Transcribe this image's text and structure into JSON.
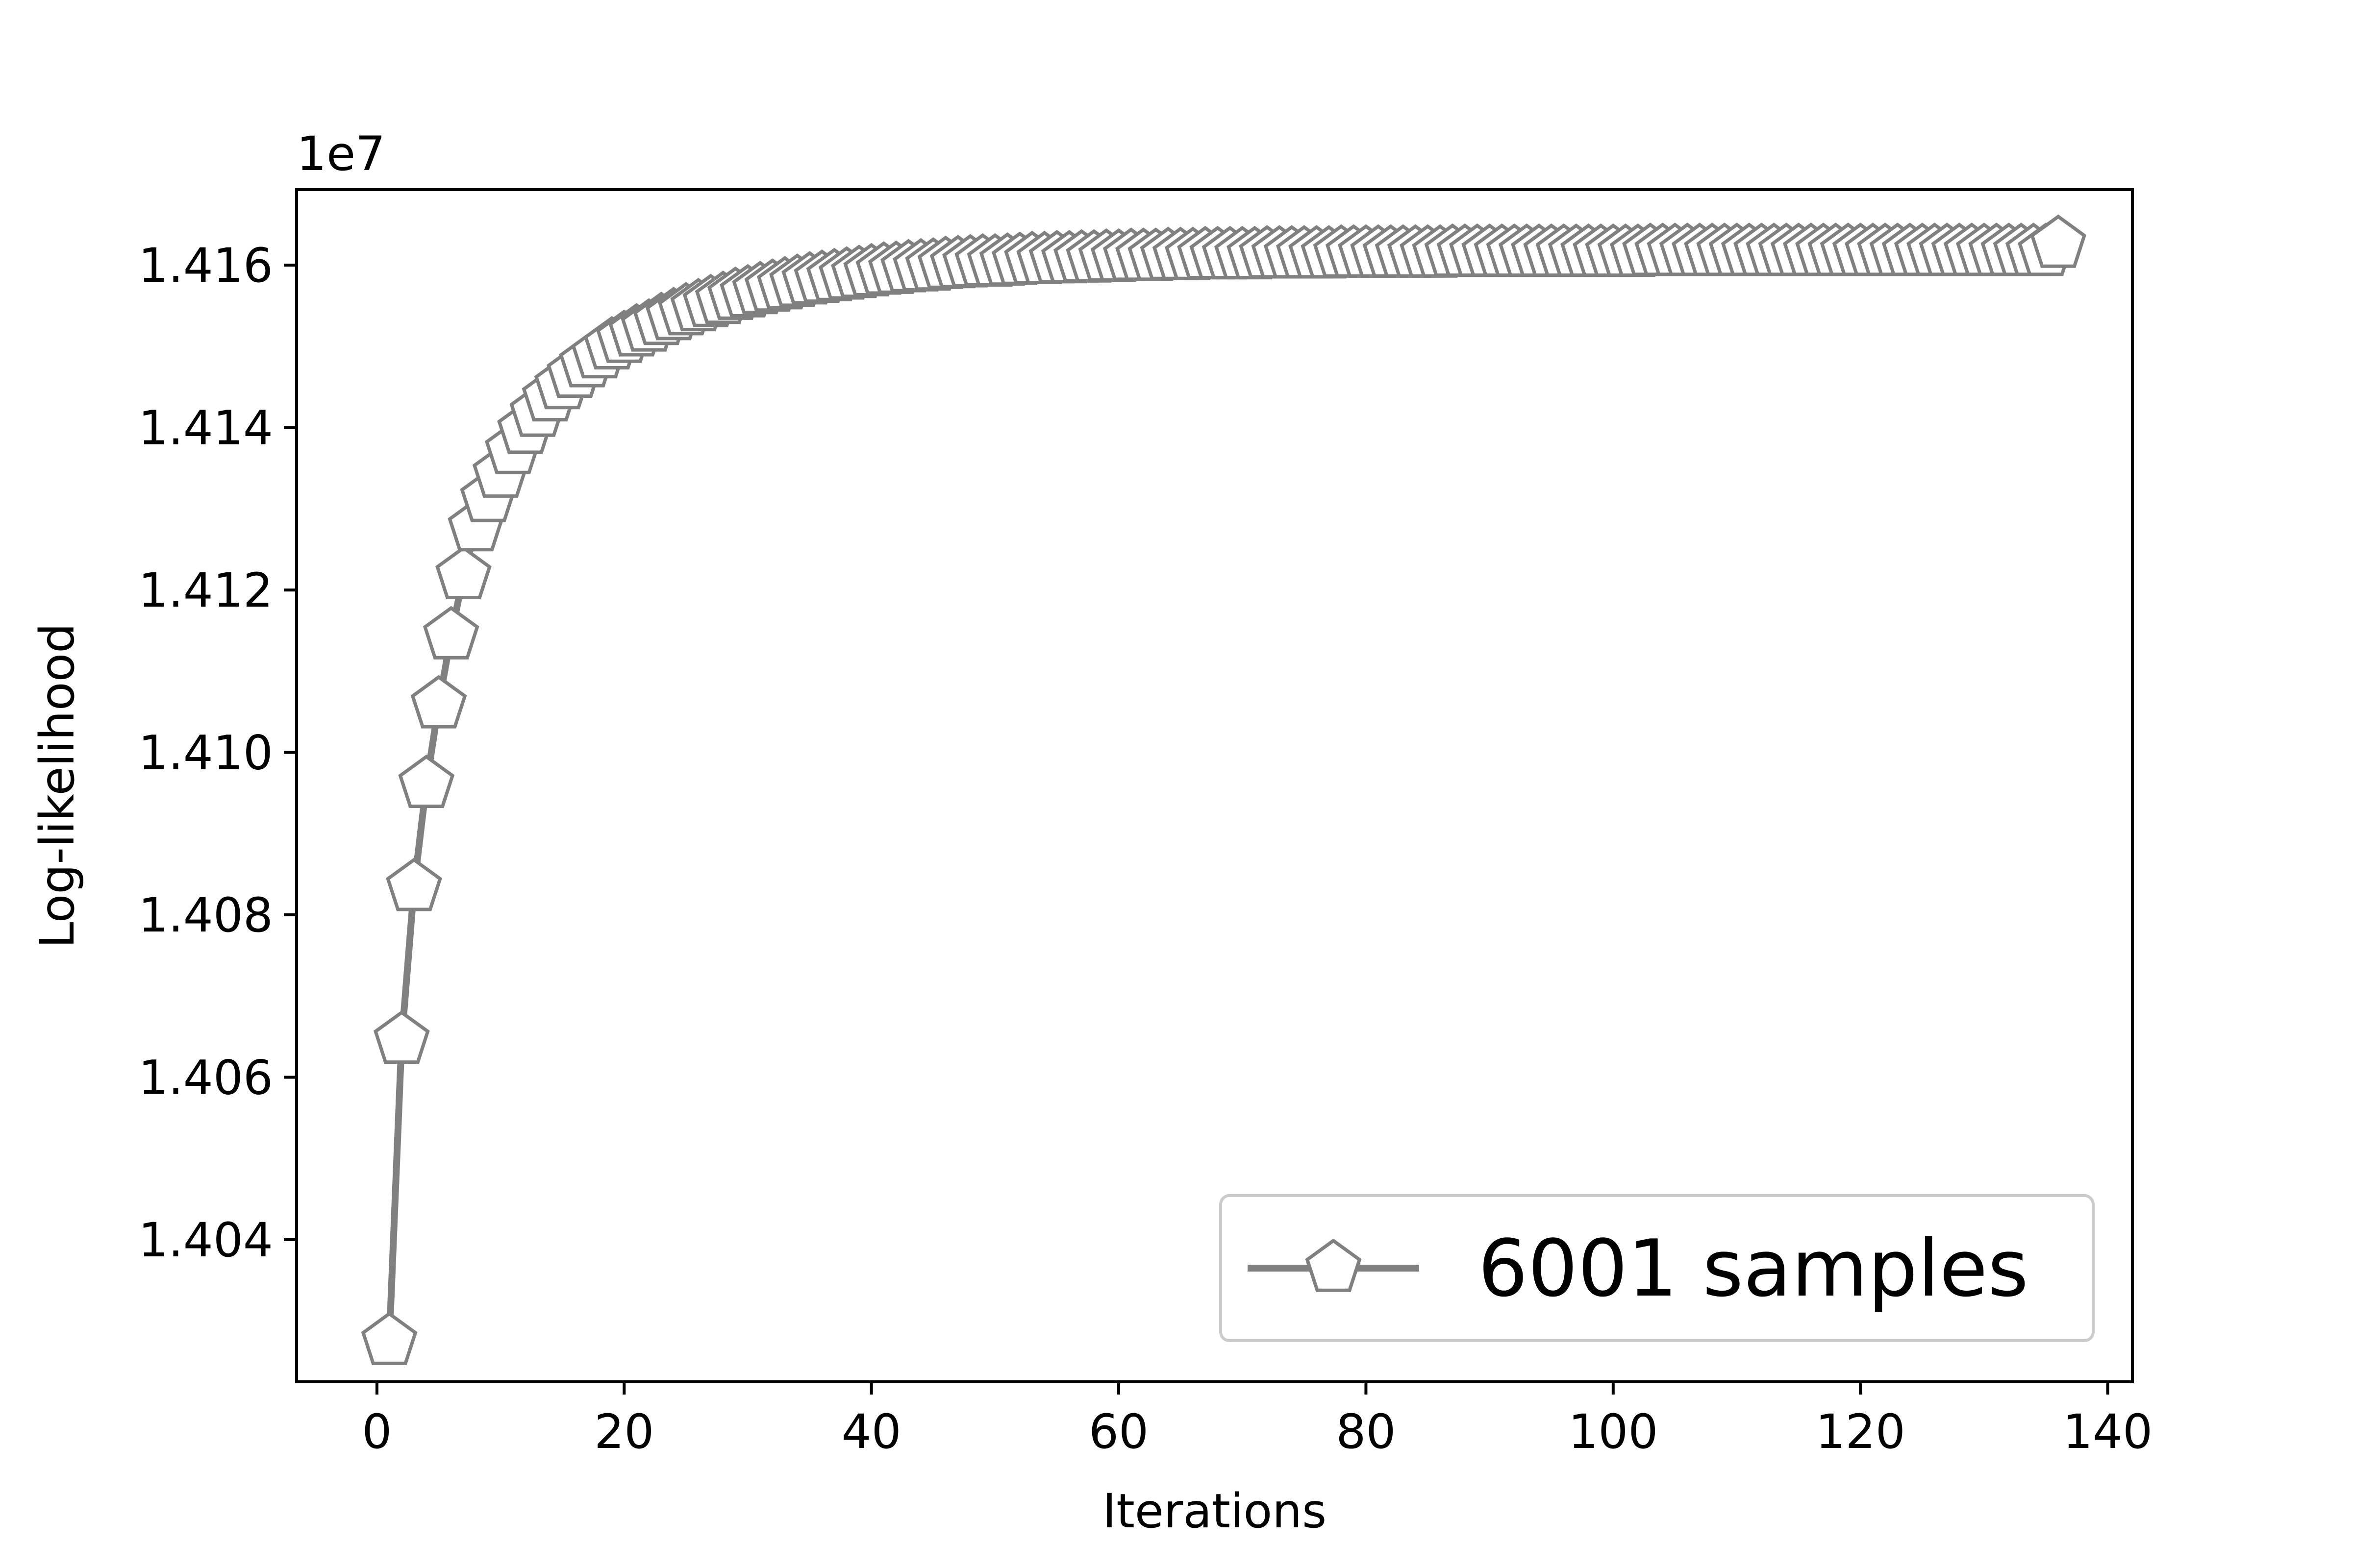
{
  "chart_data": {
    "type": "line",
    "title": "",
    "xlabel": "Iterations",
    "ylabel": "Log-likelihood",
    "y_offset_label": "1e7",
    "xlim": [
      -6.5,
      142
    ],
    "ylim": [
      1.40225,
      1.41693
    ],
    "x_ticks": [
      0,
      20,
      40,
      60,
      80,
      100,
      120,
      140
    ],
    "x_tick_labels": [
      "0",
      "20",
      "40",
      "60",
      "80",
      "100",
      "120",
      "140"
    ],
    "y_ticks": [
      1.404,
      1.406,
      1.408,
      1.41,
      1.412,
      1.414,
      1.416
    ],
    "y_tick_labels": [
      "1.404",
      "1.406",
      "1.408",
      "1.410",
      "1.412",
      "1.414",
      "1.416"
    ],
    "grid": false,
    "legend_position": "lower right",
    "marker": "pentagon",
    "series_color": "#808080",
    "series": [
      {
        "name": "6001 samples",
        "description": "Iterations 1 through 136; y values in units of 1e7",
        "x": [
          1,
          2,
          3,
          4,
          5,
          6,
          7,
          8,
          9,
          10,
          11,
          12,
          13,
          14,
          15,
          16,
          17,
          18,
          19,
          20,
          21,
          22,
          23,
          24,
          25,
          26,
          27,
          28,
          29,
          30,
          31,
          32,
          33,
          34,
          35,
          36,
          37,
          38,
          39,
          40,
          41,
          42,
          43,
          44,
          45,
          46,
          47,
          48,
          49,
          50,
          51,
          52,
          53,
          54,
          55,
          56,
          57,
          58,
          59,
          60,
          61,
          62,
          63,
          64,
          65,
          66,
          67,
          68,
          69,
          70,
          71,
          72,
          73,
          74,
          75,
          76,
          77,
          78,
          79,
          80,
          81,
          82,
          83,
          84,
          85,
          86,
          87,
          88,
          89,
          90,
          91,
          92,
          93,
          94,
          95,
          96,
          97,
          98,
          99,
          100,
          101,
          102,
          103,
          104,
          105,
          106,
          107,
          108,
          109,
          110,
          111,
          112,
          113,
          114,
          115,
          116,
          117,
          118,
          119,
          120,
          121,
          122,
          123,
          124,
          125,
          126,
          127,
          128,
          129,
          130,
          131,
          132,
          133,
          134,
          135,
          136
        ],
        "values": [
          1.40275,
          1.40646,
          1.40834,
          1.40961,
          1.41059,
          1.41144,
          1.41218,
          1.41277,
          1.41313,
          1.41343,
          1.41372,
          1.41397,
          1.41418,
          1.41437,
          1.41452,
          1.41466,
          1.41479,
          1.4149,
          1.41501,
          1.41509,
          1.41517,
          1.41523,
          1.41531,
          1.41537,
          1.41543,
          1.41548,
          1.41553,
          1.41557,
          1.41562,
          1.41565,
          1.41569,
          1.41572,
          1.41575,
          1.41578,
          1.41581,
          1.41583,
          1.41585,
          1.41587,
          1.41589,
          1.41591,
          1.41593,
          1.41594,
          1.41596,
          1.41597,
          1.41598,
          1.416,
          1.41601,
          1.41602,
          1.41603,
          1.41603,
          1.41604,
          1.41605,
          1.41606,
          1.41606,
          1.41607,
          1.41607,
          1.41608,
          1.41608,
          1.41609,
          1.41609,
          1.4161,
          1.4161,
          1.4161,
          1.41611,
          1.41611,
          1.41611,
          1.41612,
          1.41612,
          1.41612,
          1.41612,
          1.41612,
          1.41613,
          1.41613,
          1.41613,
          1.41613,
          1.41613,
          1.41613,
          1.41614,
          1.41614,
          1.41614,
          1.41614,
          1.41614,
          1.41614,
          1.41614,
          1.41614,
          1.41614,
          1.41615,
          1.41615,
          1.41615,
          1.41615,
          1.41615,
          1.41615,
          1.41615,
          1.41615,
          1.41615,
          1.41615,
          1.41615,
          1.41615,
          1.41615,
          1.41615,
          1.41615,
          1.41615,
          1.41616,
          1.41616,
          1.41616,
          1.41616,
          1.41616,
          1.41616,
          1.41616,
          1.41616,
          1.41616,
          1.41616,
          1.41616,
          1.41616,
          1.41616,
          1.41616,
          1.41616,
          1.41616,
          1.41616,
          1.41616,
          1.41616,
          1.41616,
          1.41616,
          1.41616,
          1.41616,
          1.41616,
          1.41616,
          1.41616,
          1.41616,
          1.41616,
          1.41616,
          1.41616,
          1.41616,
          1.41616,
          1.41616,
          1.41626
        ]
      }
    ]
  }
}
